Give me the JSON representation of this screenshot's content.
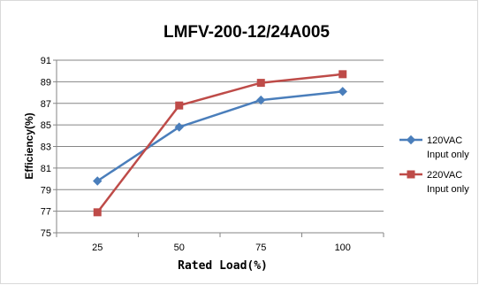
{
  "chart_data": {
    "type": "line",
    "title": "LMFV-200-12/24A005",
    "xlabel": "Rated Load(%)",
    "ylabel": "Efficiency(%)",
    "categories": [
      "25",
      "50",
      "75",
      "100"
    ],
    "y_ticks": [
      "75",
      "77",
      "79",
      "81",
      "83",
      "85",
      "87",
      "89",
      "91"
    ],
    "ylim": [
      75,
      91
    ],
    "grid": true,
    "legend_position": "right",
    "series": [
      {
        "name_line1": "120VAC",
        "name_line2": "Input only",
        "values": [
          79.8,
          84.8,
          87.3,
          88.1
        ],
        "color": "#4a7ebb",
        "marker": "diamond"
      },
      {
        "name_line1": "220VAC",
        "name_line2": "Input only",
        "values": [
          76.9,
          86.8,
          88.9,
          89.7
        ],
        "color": "#be4b48",
        "marker": "square"
      }
    ]
  }
}
